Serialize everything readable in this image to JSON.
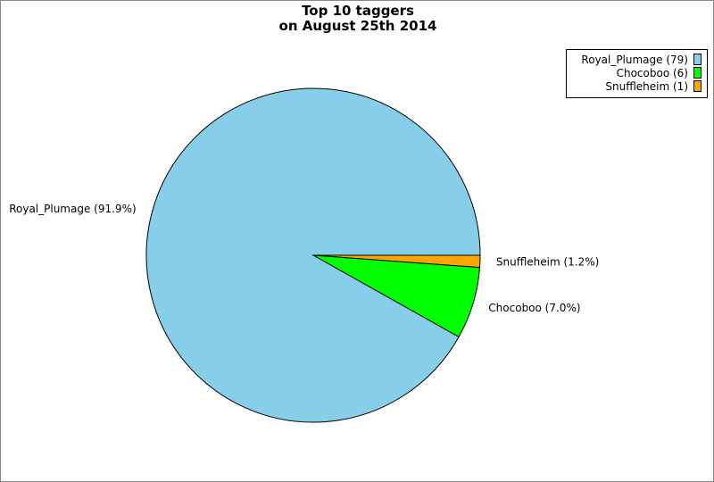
{
  "chart_data": {
    "type": "pie",
    "title": [
      "Top 10 taggers",
      "on August 25th 2014"
    ],
    "start_angle_deg": 0,
    "direction": "clockwise",
    "slices": [
      {
        "name": "Snuffleheim",
        "count": 1,
        "percent": 1.2,
        "label": "Snuffleheim (1.2%)",
        "legend": "Snuffleheim (1)",
        "color": "#ffa500"
      },
      {
        "name": "Chocoboo",
        "count": 6,
        "percent": 7.0,
        "label": "Chocoboo (7.0%)",
        "legend": "Chocoboo (6)",
        "color": "#00ff00"
      },
      {
        "name": "Royal_Plumage",
        "count": 79,
        "percent": 91.9,
        "label": "Royal_Plumage (91.9%)",
        "legend": "Royal_Plumage (79)",
        "color": "#87ceeb"
      }
    ],
    "legend_order": [
      2,
      1,
      0
    ],
    "legend_position": "top-right"
  }
}
